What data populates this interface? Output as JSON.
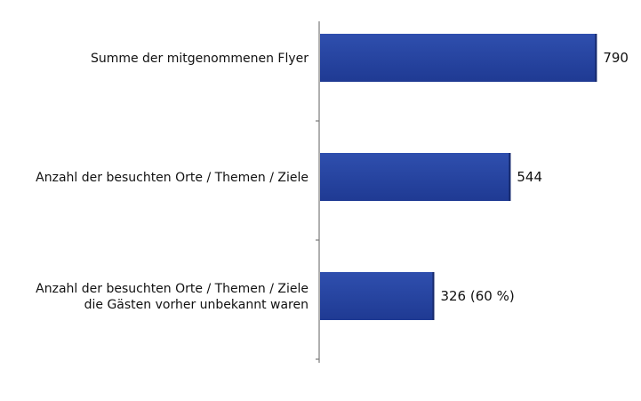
{
  "chart_data": {
    "type": "bar",
    "orientation": "horizontal",
    "categories": [
      [
        "Summe der mitgenommenen Flyer"
      ],
      [
        "Anzahl der besuchten Orte / Themen / Ziele"
      ],
      [
        "Anzahl der besuchten Orte / Themen / Ziele",
        "die Gästen vorher unbekannt waren"
      ]
    ],
    "values": [
      790,
      544,
      326
    ],
    "value_labels": [
      "790",
      "544",
      "326 (60 %)"
    ],
    "xlim": [
      0,
      830
    ],
    "grid": false,
    "legend": "none",
    "bar_color": "#1f3a93",
    "bar_color_light": "#2f4fae"
  }
}
